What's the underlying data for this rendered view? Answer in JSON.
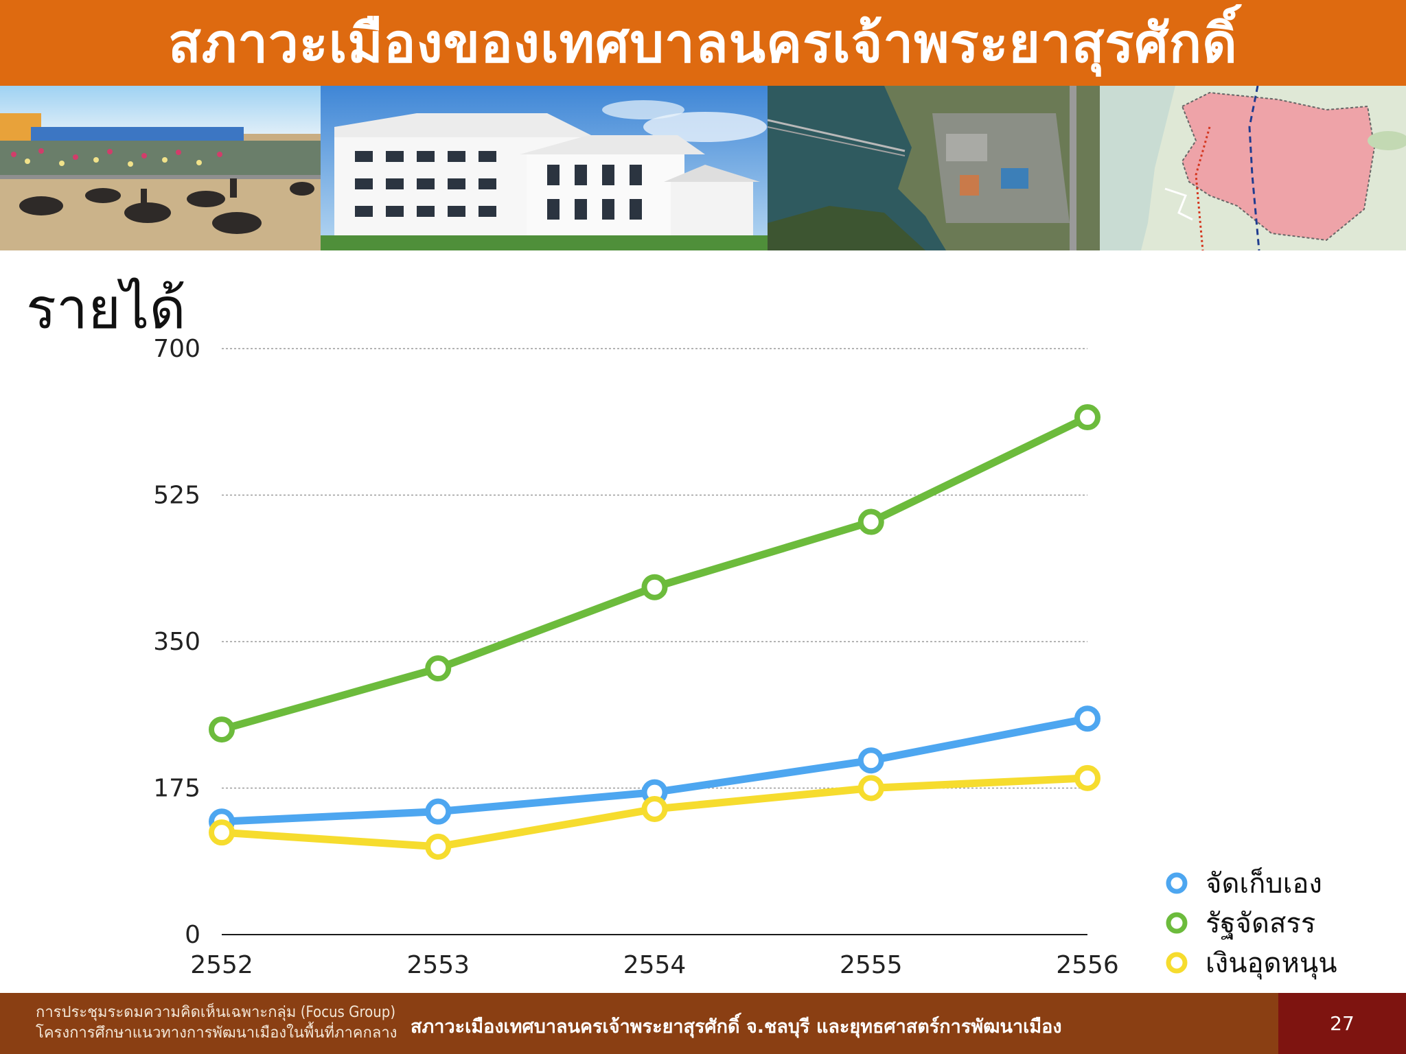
{
  "header": {
    "title": "สภาวะเมืองของเทศบาลนครเจ้าพระยาสุรศักดิ์"
  },
  "slide": {
    "heading": "รายได้"
  },
  "chart_data": {
    "type": "line",
    "title": "",
    "xlabel": "",
    "ylabel": "",
    "categories": [
      "2552",
      "2553",
      "2554",
      "2555",
      "2556"
    ],
    "ylim": [
      0,
      700
    ],
    "yticks": [
      0,
      175,
      350,
      525,
      700
    ],
    "grid": true,
    "legend_position": "bottom-right",
    "series": [
      {
        "name": "จัดเก็บเอง",
        "color": "#4da6f0",
        "values": [
          135,
          147,
          170,
          208,
          258
        ]
      },
      {
        "name": "รัฐจัดสรร",
        "color": "#6cbb3c",
        "values": [
          245,
          318,
          415,
          493,
          618
        ]
      },
      {
        "name": "เงินอุดหนุน",
        "color": "#f6dc2e",
        "values": [
          122,
          105,
          150,
          175,
          187
        ]
      }
    ]
  },
  "footer": {
    "line1": "การประชุมระดมความคิดเห็นเฉพาะกลุ่ม (Focus Group)",
    "line2": "โครงการศึกษาแนวทางการพัฒนาเมืองในพื้นที่ภาคกลาง",
    "center": "สภาวะเมืองเทศบาลนครเจ้าพระยาสุรศักดิ์ จ.ชลบุรี และยุทธศาสตร์การพัฒนาเมือง",
    "page": "27"
  }
}
